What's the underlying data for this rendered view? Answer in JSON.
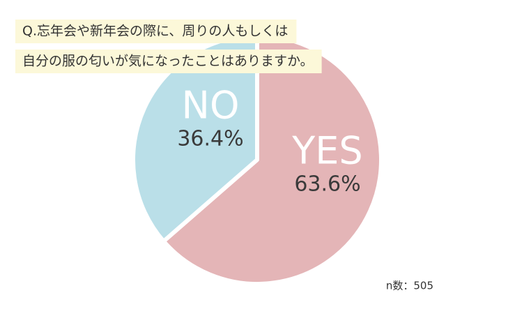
{
  "chart_data": {
    "type": "pie",
    "title": [
      "Q.忘年会や新年会の際に、周りの人もしくは",
      "自分の服の匂いが気になったことはありますか。"
    ],
    "categories": [
      "YES",
      "NO"
    ],
    "values": [
      63.6,
      36.4
    ],
    "value_labels": [
      "63.6%",
      "36.4%"
    ],
    "colors": [
      "#e4b5b7",
      "#badfe8"
    ],
    "note": "n数：505"
  }
}
